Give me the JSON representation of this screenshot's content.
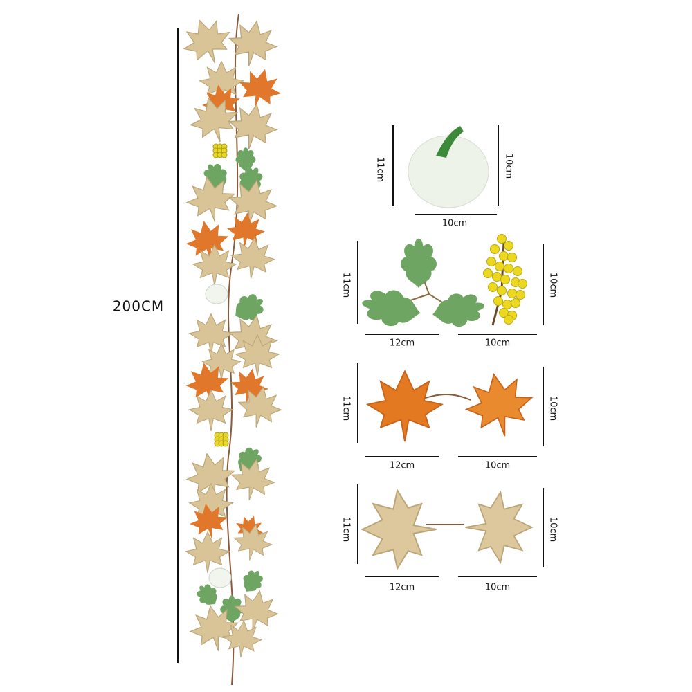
{
  "garland": {
    "length_label": "200CM"
  },
  "items": [
    {
      "height_left": "11cm",
      "height_right": "10cm",
      "widths": [
        "10cm"
      ]
    },
    {
      "height_left": "11cm",
      "height_right": "10cm",
      "widths": [
        "12cm",
        "10cm"
      ]
    },
    {
      "height_left": "11cm",
      "height_right": "10cm",
      "widths": [
        "12cm",
        "10cm"
      ]
    },
    {
      "height_left": "11cm",
      "height_right": "10cm",
      "widths": [
        "12cm",
        "10cm"
      ]
    }
  ]
}
